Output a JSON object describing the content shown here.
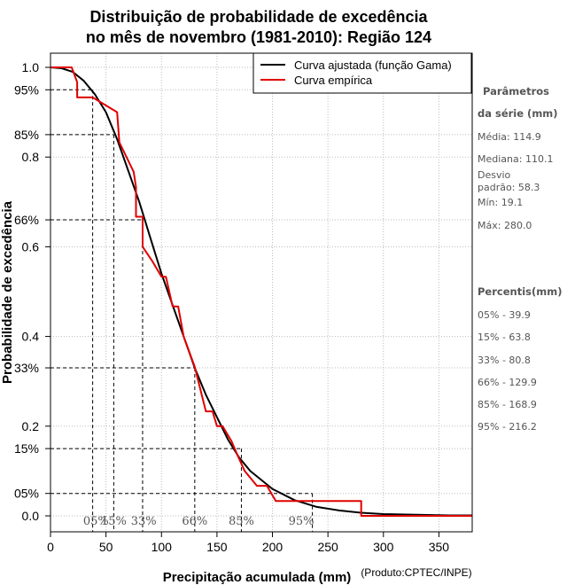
{
  "chart_data": {
    "type": "line",
    "title_line1": "Distribuição de probabilidade de excedência",
    "title_line2": "no mês de novembro (1981-2010): Região 124",
    "xlabel": "Precipitação acumulada (mm)",
    "ylabel": "Probabilidade de excedência",
    "credit": "(Produto:CPTEC/INPE)",
    "xlim": [
      0,
      380
    ],
    "ylim": [
      0,
      1.0
    ],
    "x_ticks": [
      0,
      50,
      100,
      150,
      200,
      250,
      300,
      350
    ],
    "y_ticks": [
      {
        "value": 1.0,
        "label": "1.0"
      },
      {
        "value": 0.95,
        "label": "95%"
      },
      {
        "value": 0.85,
        "label": "85%"
      },
      {
        "value": 0.8,
        "label": "0.8"
      },
      {
        "value": 0.66,
        "label": "66%"
      },
      {
        "value": 0.6,
        "label": "0.6"
      },
      {
        "value": 0.4,
        "label": "0.4"
      },
      {
        "value": 0.33,
        "label": "33%"
      },
      {
        "value": 0.2,
        "label": "0.2"
      },
      {
        "value": 0.15,
        "label": "15%"
      },
      {
        "value": 0.05,
        "label": "05%"
      },
      {
        "value": 0.0,
        "label": "0.0"
      }
    ],
    "legend": [
      {
        "name": "Curva ajustada (função Gama)",
        "color": "#000000"
      },
      {
        "name": "Curva empírica",
        "color": "#e00000"
      }
    ],
    "series": [
      {
        "name": "Curva ajustada (função Gama)",
        "color": "#000000",
        "x": [
          0,
          10,
          20,
          30,
          40,
          50,
          60,
          70,
          80,
          90,
          100,
          110,
          120,
          130,
          140,
          150,
          160,
          170,
          180,
          190,
          200,
          220,
          240,
          260,
          280,
          300,
          320,
          340,
          360,
          380
        ],
        "y": [
          1.0,
          0.998,
          0.99,
          0.97,
          0.94,
          0.9,
          0.84,
          0.77,
          0.7,
          0.62,
          0.54,
          0.47,
          0.4,
          0.33,
          0.27,
          0.22,
          0.17,
          0.13,
          0.1,
          0.08,
          0.06,
          0.035,
          0.02,
          0.012,
          0.007,
          0.004,
          0.003,
          0.002,
          0.001,
          0.001
        ]
      },
      {
        "name": "Curva empírica",
        "color": "#e00000",
        "x": [
          0,
          19.1,
          24,
          24,
          38,
          38,
          60,
          62,
          75,
          77,
          77,
          83,
          83,
          92,
          100,
          104,
          110,
          115,
          120,
          129.9,
          140,
          146,
          150,
          155,
          163,
          168.9,
          175,
          186,
          195,
          203,
          238,
          280,
          280,
          380
        ],
        "y": [
          1.0,
          1.0,
          0.967,
          0.933,
          0.933,
          0.933,
          0.9,
          0.833,
          0.767,
          0.733,
          0.667,
          0.667,
          0.6,
          0.567,
          0.533,
          0.533,
          0.467,
          0.467,
          0.4,
          0.333,
          0.233,
          0.233,
          0.2,
          0.2,
          0.167,
          0.133,
          0.1,
          0.067,
          0.067,
          0.033,
          0.033,
          0.033,
          0.0,
          0.0
        ]
      }
    ],
    "percentile_markers": [
      {
        "pct": "05%",
        "prob": 0.05,
        "value": 39.9,
        "label_x": 41
      },
      {
        "pct": "15%",
        "prob": 0.15,
        "value": 63.8,
        "label_x": 57
      },
      {
        "pct": "33%",
        "prob": 0.33,
        "value": 80.8,
        "label_x": 84
      },
      {
        "pct": "66%",
        "prob": 0.66,
        "value": 129.9,
        "label_x": 130
      },
      {
        "pct": "85%",
        "prob": 0.85,
        "value": 168.9,
        "label_x": 172
      },
      {
        "pct": "95%",
        "prob": 0.95,
        "value": 216.2,
        "label_x": 226
      }
    ],
    "marker_lines": [
      {
        "prob": 0.95,
        "x": 38
      },
      {
        "prob": 0.85,
        "x": 57
      },
      {
        "prob": 0.66,
        "x": 83
      },
      {
        "prob": 0.33,
        "x": 130
      },
      {
        "prob": 0.15,
        "x": 172
      },
      {
        "prob": 0.05,
        "x": 236
      }
    ]
  },
  "stats": {
    "params_title_1": "Parâmetros",
    "params_title_2": "da série (mm)",
    "media": "Média: 114.9",
    "mediana": "Mediana: 110.1",
    "desvio_1": "Desvio",
    "desvio_2": "padrão: 58.3",
    "min": "Mín: 19.1",
    "max": "Máx: 280.0",
    "percentis_title": "Percentis(mm)",
    "p05": "05% - 39.9",
    "p15": "15% - 63.8",
    "p33": "33% - 80.8",
    "p66": "66% - 129.9",
    "p85": "85% - 168.9",
    "p95": "95% - 216.2"
  }
}
